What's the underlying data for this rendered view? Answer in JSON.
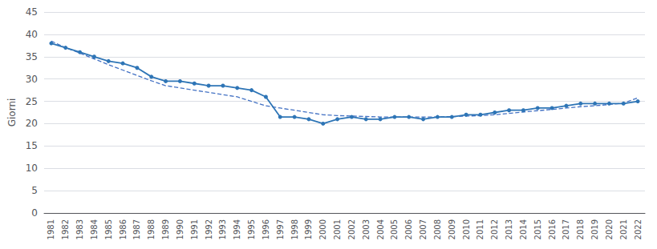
{
  "chart_data": {
    "type": "line",
    "ylabel": "Giorni",
    "categories": [
      "1981",
      "1982",
      "1983",
      "1984",
      "1985",
      "1986",
      "1987",
      "1988",
      "1989",
      "1990",
      "1991",
      "1992",
      "1993",
      "1994",
      "1995",
      "1996",
      "1997",
      "1998",
      "1999",
      "2000",
      "2001",
      "2002",
      "2003",
      "2004",
      "2005",
      "2006",
      "2007",
      "2008",
      "2009",
      "2010",
      "2011",
      "2012",
      "2013",
      "2014",
      "2015",
      "2016",
      "2017",
      "2018",
      "2019",
      "2020",
      "2021",
      "2022"
    ],
    "series": [
      {
        "color": "#4472C4",
        "line_style": "dashed",
        "values": [
          38.5,
          37.0,
          35.8,
          34.5,
          33.2,
          32.0,
          30.8,
          29.6,
          28.5,
          28.0,
          27.5,
          27.0,
          26.5,
          26.0,
          25.0,
          24.0,
          23.5,
          23.0,
          22.5,
          22.0,
          21.8,
          21.7,
          21.6,
          21.5,
          21.5,
          21.5,
          21.5,
          21.5,
          21.6,
          21.7,
          21.8,
          22.0,
          22.3,
          22.6,
          22.9,
          23.2,
          23.5,
          23.8,
          24.0,
          24.3,
          24.6,
          25.8
        ]
      },
      {
        "color": "#2E75B6",
        "line_style": "solid",
        "marker": "circle",
        "values": [
          38.0,
          37.0,
          36.0,
          35.0,
          34.0,
          33.5,
          32.5,
          30.5,
          29.5,
          29.5,
          29.0,
          28.5,
          28.5,
          28.0,
          27.5,
          26.0,
          21.5,
          21.5,
          21.0,
          20.0,
          21.0,
          21.5,
          21.0,
          21.0,
          21.5,
          21.5,
          21.0,
          21.5,
          21.5,
          22.0,
          22.0,
          22.5,
          23.0,
          23.0,
          23.5,
          23.5,
          24.0,
          24.5,
          24.5,
          24.5,
          24.5,
          25.0
        ]
      }
    ],
    "ylim": [
      0,
      45
    ],
    "yticks": [
      0,
      5,
      10,
      15,
      20,
      25,
      30,
      35,
      40,
      45
    ],
    "grid": true
  }
}
